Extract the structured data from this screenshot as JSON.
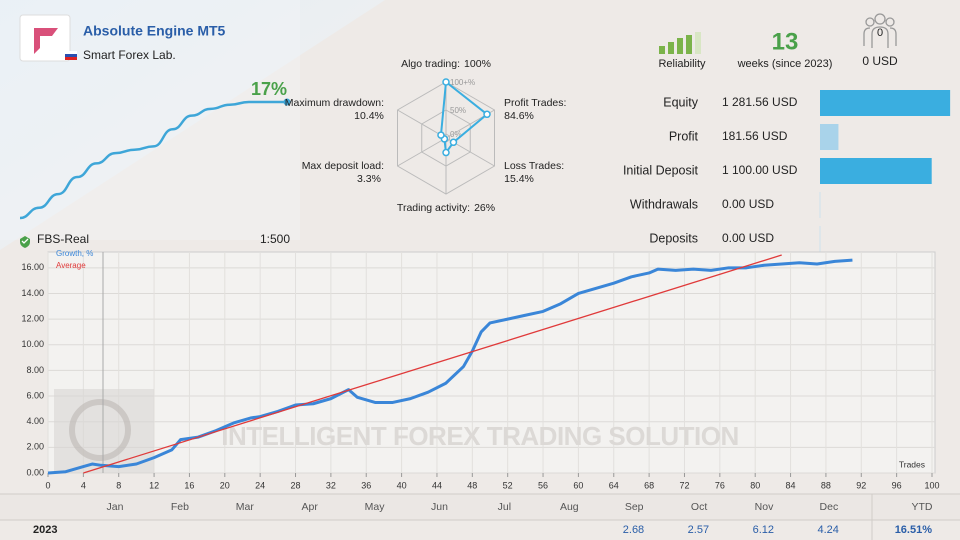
{
  "header": {
    "title": "Absolute Engine MT5",
    "author": "Smart Forex Lab.",
    "growth": "17%"
  },
  "sparkline": {
    "type": "line",
    "color": "#3ea6d8",
    "values": [
      0,
      1.5,
      3.5,
      6,
      8,
      9.5,
      10,
      10.5,
      13,
      15,
      16,
      16.6,
      17,
      17,
      17
    ],
    "ylim": [
      0,
      17
    ]
  },
  "radar": {
    "type": "radar",
    "color": "#3aaee0",
    "axes": [
      {
        "name": "Algo trading:",
        "value": 100,
        "value_label": "100%"
      },
      {
        "name": "Profit Trades:",
        "value": 84.6,
        "value_label": "84.6%"
      },
      {
        "name": "Loss Trades:",
        "value": 15.4,
        "value_label": "15.4%"
      },
      {
        "name": "Trading activity:",
        "value": 26,
        "value_label": "26%"
      },
      {
        "name": "Max deposit load:",
        "value": 3.3,
        "value_label": "3.3%"
      },
      {
        "name": "Maximum drawdown:",
        "value": 10.4,
        "value_label": "10.4%"
      }
    ],
    "rlim": [
      0,
      100
    ],
    "rticks": [
      {
        "value": 0,
        "label": "0%"
      },
      {
        "value": 50,
        "label": "50%"
      },
      {
        "value": 100,
        "label": "100+%"
      }
    ]
  },
  "stats": {
    "reliability_label": "Reliability",
    "weeks": "13",
    "weeks_label": "weeks (since 2023)",
    "subscribers": "0",
    "subscribers_value": "0 USD"
  },
  "balance": {
    "type": "bar",
    "xlim": [
      0,
      1300
    ],
    "rows": [
      {
        "label": "Equity",
        "value": 1281.56,
        "value_label": "1 281.56 USD",
        "color": "#3aaee0"
      },
      {
        "label": "Profit",
        "value": 181.56,
        "value_label": "181.56 USD",
        "color": "#a9d3ea"
      },
      {
        "label": "Initial Deposit",
        "value": 1100,
        "value_label": "1 100.00 USD",
        "color": "#3aaee0"
      },
      {
        "label": "Withdrawals",
        "value": 0,
        "value_label": "0.00 USD",
        "color": "#3aaee0"
      },
      {
        "label": "Deposits",
        "value": 0,
        "value_label": "0.00 USD",
        "color": "#3aaee0"
      }
    ]
  },
  "account": {
    "name": "FBS-Real",
    "leverage": "1:500"
  },
  "chart_data": {
    "type": "line",
    "x_label": "Trades",
    "watermark": "INTELLIGENT FOREX TRADING SOLUTION",
    "grid": true,
    "xlim": [
      0,
      100
    ],
    "xticks": [
      0,
      4,
      8,
      12,
      16,
      20,
      24,
      28,
      32,
      36,
      40,
      44,
      48,
      52,
      56,
      60,
      64,
      68,
      72,
      76,
      80,
      84,
      88,
      92,
      96,
      100
    ],
    "ylim": [
      0,
      17
    ],
    "yticks": [
      {
        "value": 0,
        "label": "0.00"
      },
      {
        "value": 2,
        "label": "2.00"
      },
      {
        "value": 4,
        "label": "4.00"
      },
      {
        "value": 6,
        "label": "6.00"
      },
      {
        "value": 8,
        "label": "8.00"
      },
      {
        "value": 10,
        "label": "10.00"
      },
      {
        "value": 12,
        "label": "12.00"
      },
      {
        "value": 14,
        "label": "14.00"
      },
      {
        "value": 16,
        "label": "16.00"
      }
    ],
    "series": [
      {
        "name": "Growth, %",
        "color": "#3a86d8",
        "x": [
          0,
          2,
          4,
          5,
          6,
          8,
          10,
          12,
          14,
          15,
          17,
          19,
          21,
          23,
          24,
          26,
          28,
          30,
          32,
          34,
          35,
          37,
          39,
          41,
          43,
          45,
          47,
          48,
          49,
          50,
          52,
          54,
          56,
          58,
          60,
          62,
          64,
          66,
          68,
          69,
          71,
          73,
          75,
          77,
          79,
          81,
          83,
          85,
          87,
          89,
          91
        ],
        "values": [
          0,
          0.1,
          0.5,
          0.7,
          0.6,
          0.5,
          0.7,
          1.2,
          1.8,
          2.6,
          2.8,
          3.3,
          3.9,
          4.3,
          4.4,
          4.8,
          5.3,
          5.4,
          5.8,
          6.5,
          5.9,
          5.5,
          5.5,
          5.8,
          6.3,
          7.0,
          8.3,
          9.5,
          11.0,
          11.7,
          12.0,
          12.3,
          12.6,
          13.2,
          14.0,
          14.4,
          14.8,
          15.3,
          15.6,
          15.9,
          15.8,
          15.9,
          15.8,
          16.0,
          16.0,
          16.2,
          16.3,
          16.4,
          16.3,
          16.5,
          16.6
        ]
      },
      {
        "name": "Average",
        "color": "#e03a3a",
        "x": [
          4,
          83
        ],
        "values": [
          0,
          17
        ]
      }
    ]
  },
  "months_table": {
    "months": [
      "Jan",
      "Feb",
      "Mar",
      "Apr",
      "May",
      "Jun",
      "Jul",
      "Aug",
      "Sep",
      "Oct",
      "Nov",
      "Dec"
    ],
    "ytd_header": "YTD",
    "year": "2023",
    "values": [
      null,
      null,
      null,
      null,
      null,
      null,
      null,
      null,
      "2.68",
      "2.57",
      "6.12",
      "4.24"
    ],
    "ytd": "16.51%"
  }
}
